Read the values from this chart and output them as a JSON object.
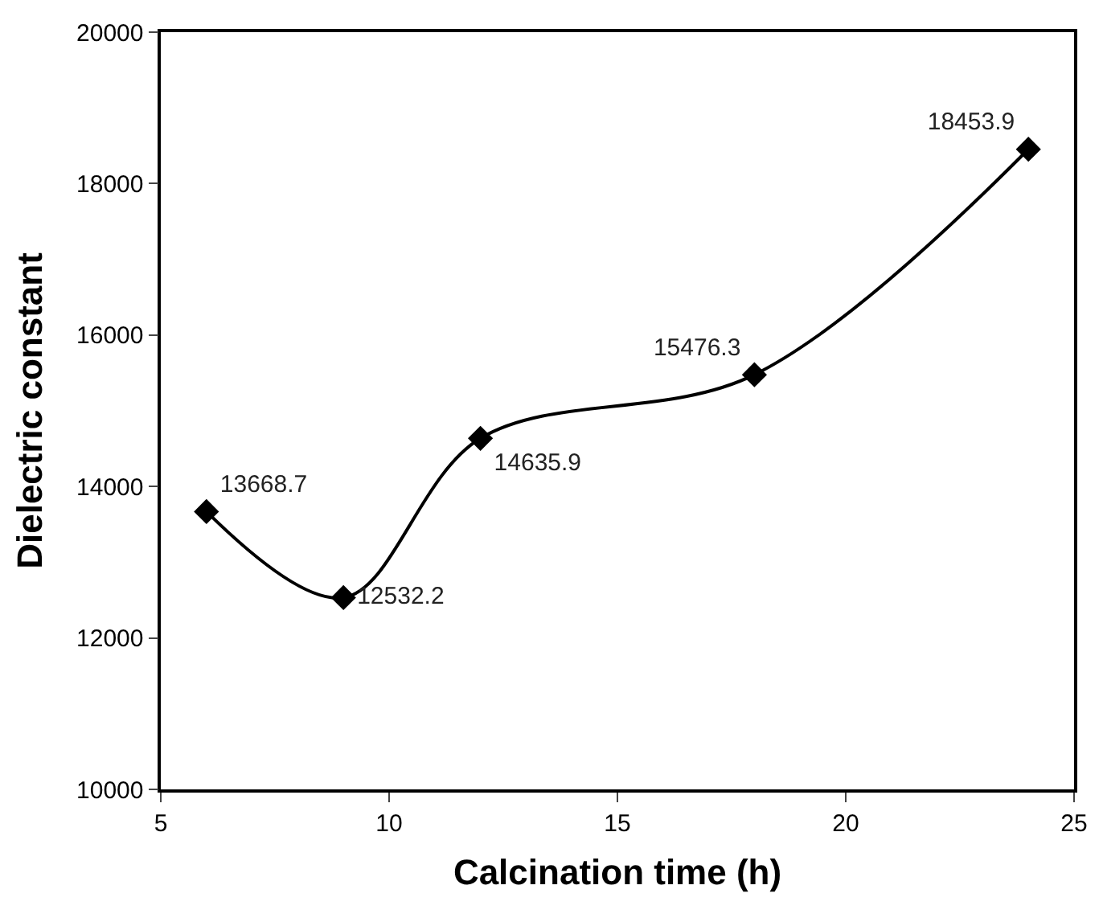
{
  "chart_data": {
    "type": "line",
    "xlabel": "Calcination time (h)",
    "ylabel": "Dielectric constant",
    "x": [
      6,
      9,
      12,
      18,
      24
    ],
    "series": [
      {
        "color": "#000000",
        "values": [
          13668.7,
          12532.2,
          14635.9,
          15476.3,
          18453.9
        ]
      }
    ],
    "xlim": [
      5,
      25
    ],
    "xticks": [
      5,
      10,
      15,
      20,
      25
    ],
    "ylim": [
      10000,
      20000
    ],
    "yticks": [
      10000,
      12000,
      14000,
      16000,
      18000,
      20000
    ],
    "marker": "diamond",
    "line_style": "solid",
    "data_labels": true
  }
}
